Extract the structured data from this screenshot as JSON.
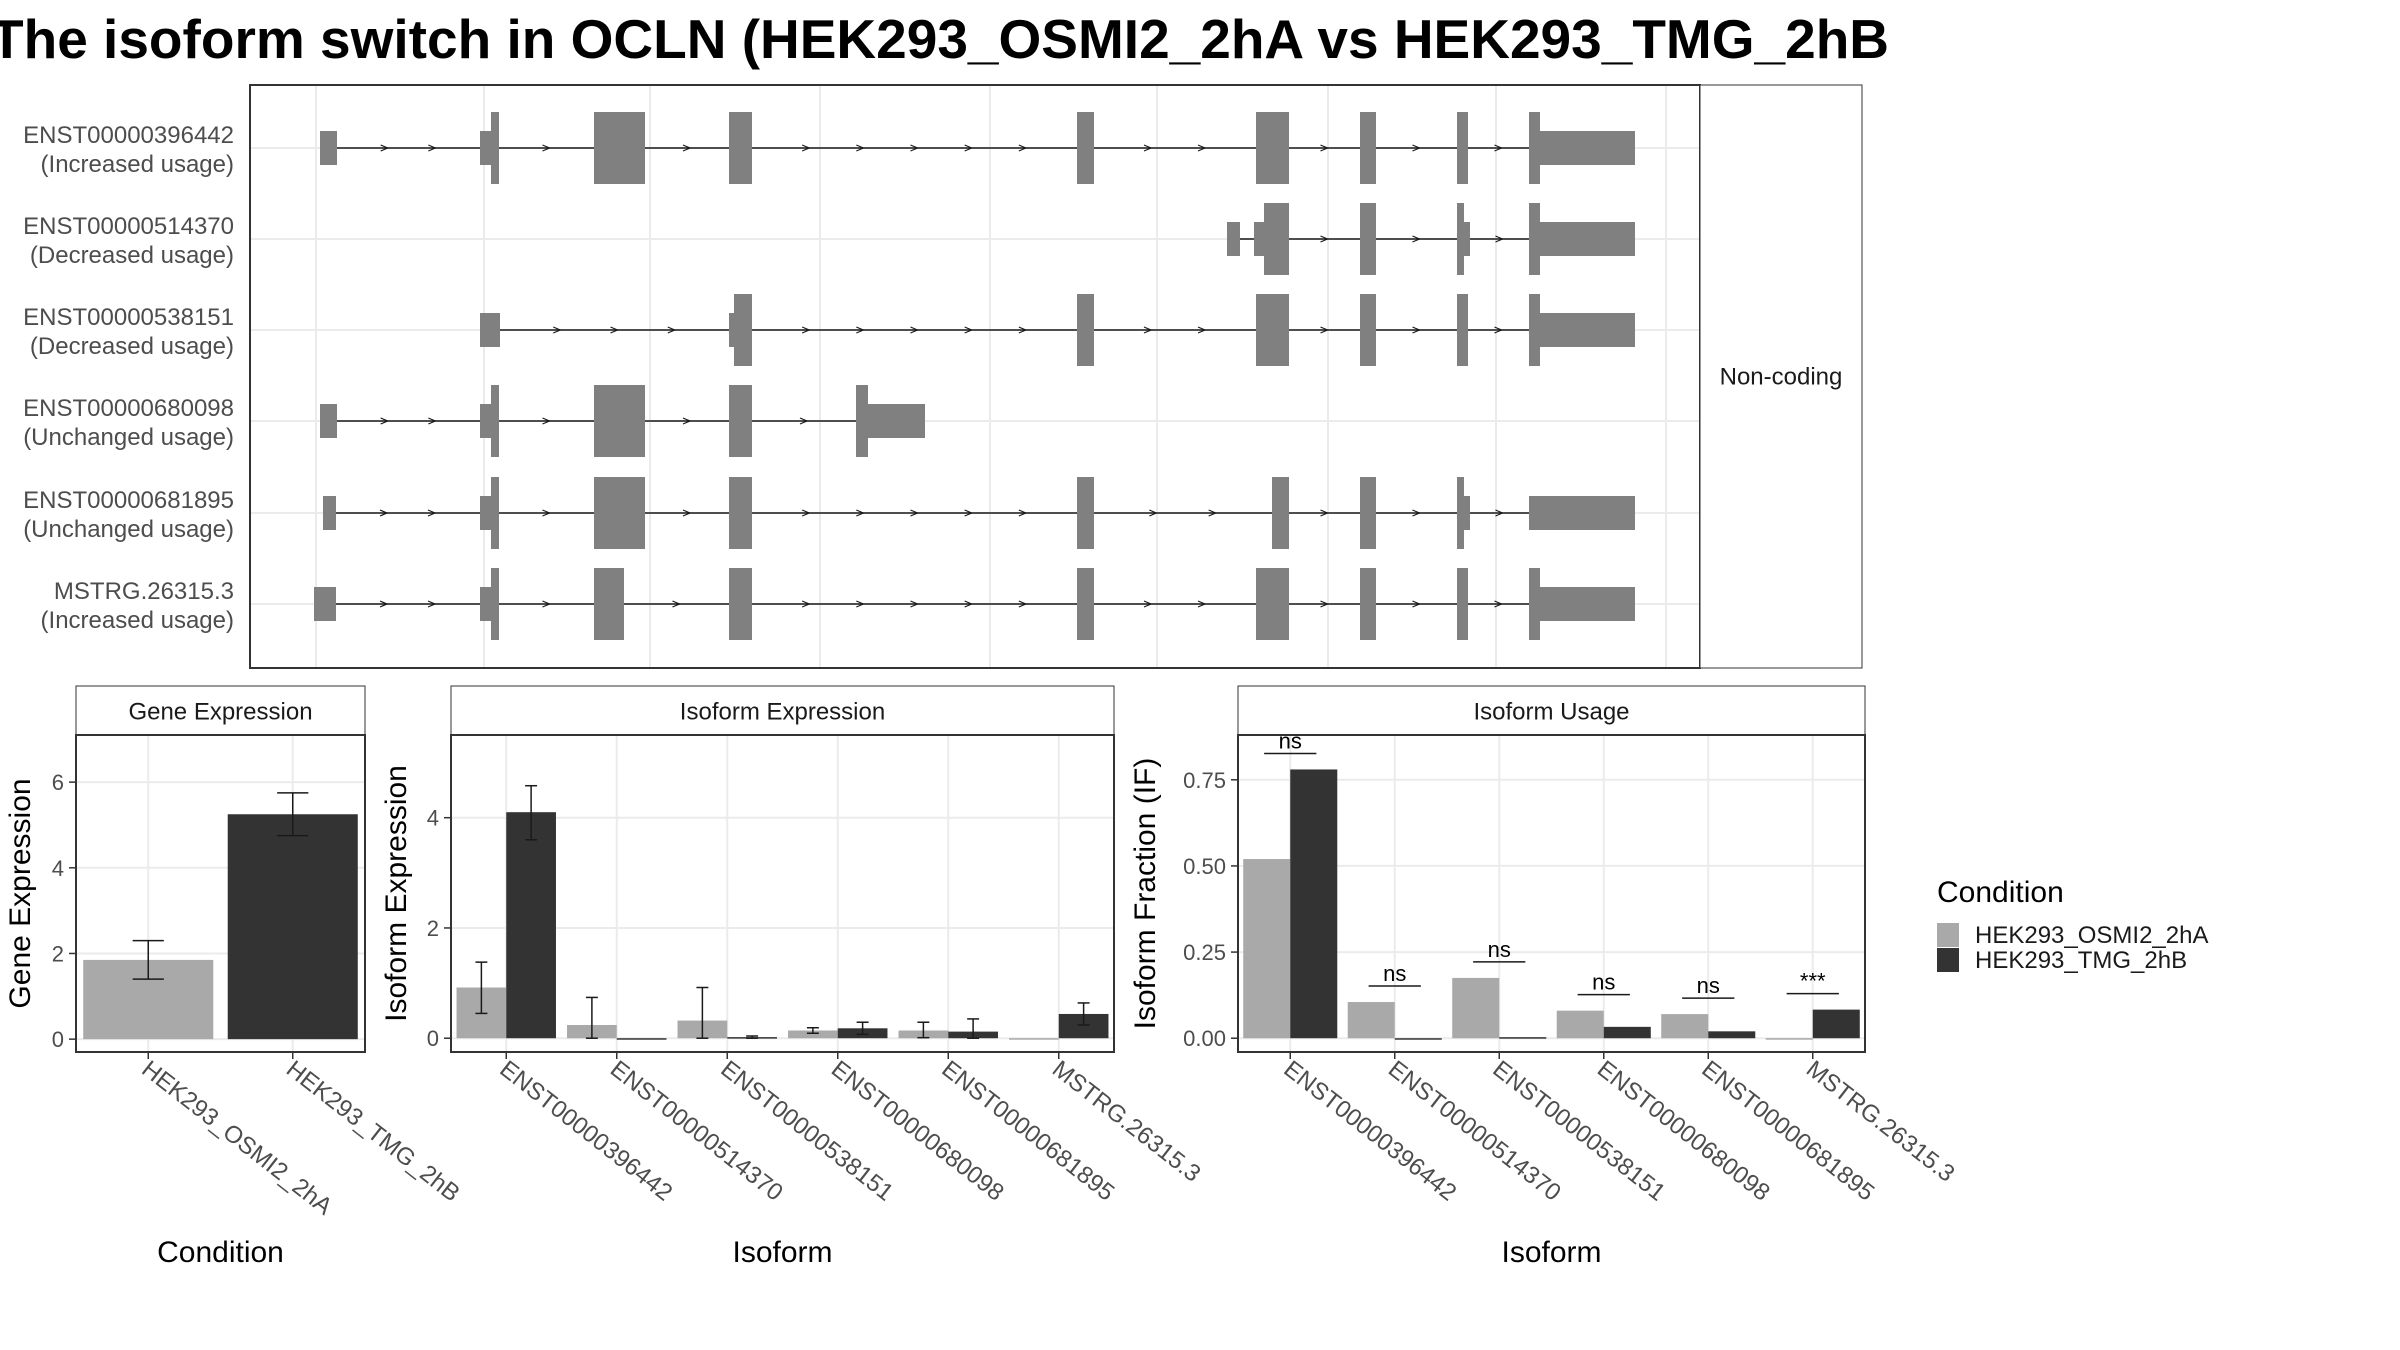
{
  "title": "The isoform switch in OCLN (HEK293_OSMI2_2hA vs HEK293_TMG_2hB",
  "colors": {
    "cond_a": "#A9A9A9",
    "cond_b": "#333333",
    "exon": "#808080",
    "line": "#333333"
  },
  "chart_data": [
    {
      "type": "gene-structure",
      "strip_label": "Non-coding",
      "transcripts": [
        {
          "id": "ENST00000396442",
          "usage": "(Increased usage)"
        },
        {
          "id": "ENST00000514370",
          "usage": "(Decreased usage)"
        },
        {
          "id": "ENST00000538151",
          "usage": "(Decreased usage)"
        },
        {
          "id": "ENST00000680098",
          "usage": "(Unchanged usage)"
        },
        {
          "id": "ENST00000681895",
          "usage": "(Unchanged usage)"
        },
        {
          "id": "MSTRG.26315.3",
          "usage": "(Increased usage)"
        }
      ]
    },
    {
      "type": "bar",
      "title": "Gene Expression",
      "xlabel": "Condition",
      "ylabel": "Gene Expression",
      "categories": [
        "HEK293_OSMI2_2hA",
        "HEK293_TMG_2hB"
      ],
      "values": [
        1.85,
        5.25
      ],
      "errors": [
        [
          1.4,
          2.3
        ],
        [
          4.75,
          5.75
        ]
      ],
      "ylim": [
        -0.3,
        7.1
      ],
      "yticks": [
        0,
        2,
        4,
        6
      ]
    },
    {
      "type": "bar",
      "title": "Isoform Expression",
      "xlabel": "Isoform",
      "ylabel": "Isoform Expression",
      "categories": [
        "ENST00000396442",
        "ENST00000514370",
        "ENST00000538151",
        "ENST00000680098",
        "ENST00000681895",
        "MSTRG.26315.3"
      ],
      "series": [
        {
          "name": "HEK293_OSMI2_2hA",
          "values": [
            0.92,
            0.24,
            0.32,
            0.14,
            0.14,
            0.0
          ],
          "errors": [
            [
              0.45,
              1.38
            ],
            [
              0.0,
              0.74
            ],
            [
              0.0,
              0.92
            ],
            [
              0.09,
              0.19
            ],
            [
              0.01,
              0.29
            ],
            [
              0.0,
              0.0
            ]
          ]
        },
        {
          "name": "HEK293_TMG_2hB",
          "values": [
            4.1,
            0.0,
            0.02,
            0.18,
            0.12,
            0.44
          ],
          "errors": [
            [
              3.6,
              4.58
            ],
            [
              0.0,
              0.0
            ],
            [
              0.0,
              0.04
            ],
            [
              0.07,
              0.29
            ],
            [
              0.0,
              0.35
            ],
            [
              0.24,
              0.64
            ]
          ]
        }
      ],
      "ylim": [
        -0.25,
        5.5
      ],
      "yticks": [
        0,
        2,
        4
      ]
    },
    {
      "type": "bar",
      "title": "Isoform Usage",
      "xlabel": "Isoform",
      "ylabel": "Isoform Fraction (IF)",
      "categories": [
        "ENST00000396442",
        "ENST00000514370",
        "ENST00000538151",
        "ENST00000680098",
        "ENST00000681895",
        "MSTRG.26315.3"
      ],
      "series": [
        {
          "name": "HEK293_OSMI2_2hA",
          "values": [
            0.52,
            0.105,
            0.175,
            0.08,
            0.07,
            0.0
          ]
        },
        {
          "name": "HEK293_TMG_2hB",
          "values": [
            0.78,
            0.0,
            0.003,
            0.033,
            0.02,
            0.083
          ]
        }
      ],
      "significance": [
        "ns",
        "ns",
        "ns",
        "ns",
        "ns",
        "***"
      ],
      "ylim": [
        -0.04,
        0.88
      ],
      "yticks": [
        0.0,
        0.25,
        0.5,
        0.75
      ],
      "ytick_labels": [
        "0.00",
        "0.25",
        "0.50",
        "0.75"
      ]
    }
  ],
  "legend": {
    "title": "Condition",
    "items": [
      "HEK293_OSMI2_2hA",
      "HEK293_TMG_2hB"
    ]
  }
}
